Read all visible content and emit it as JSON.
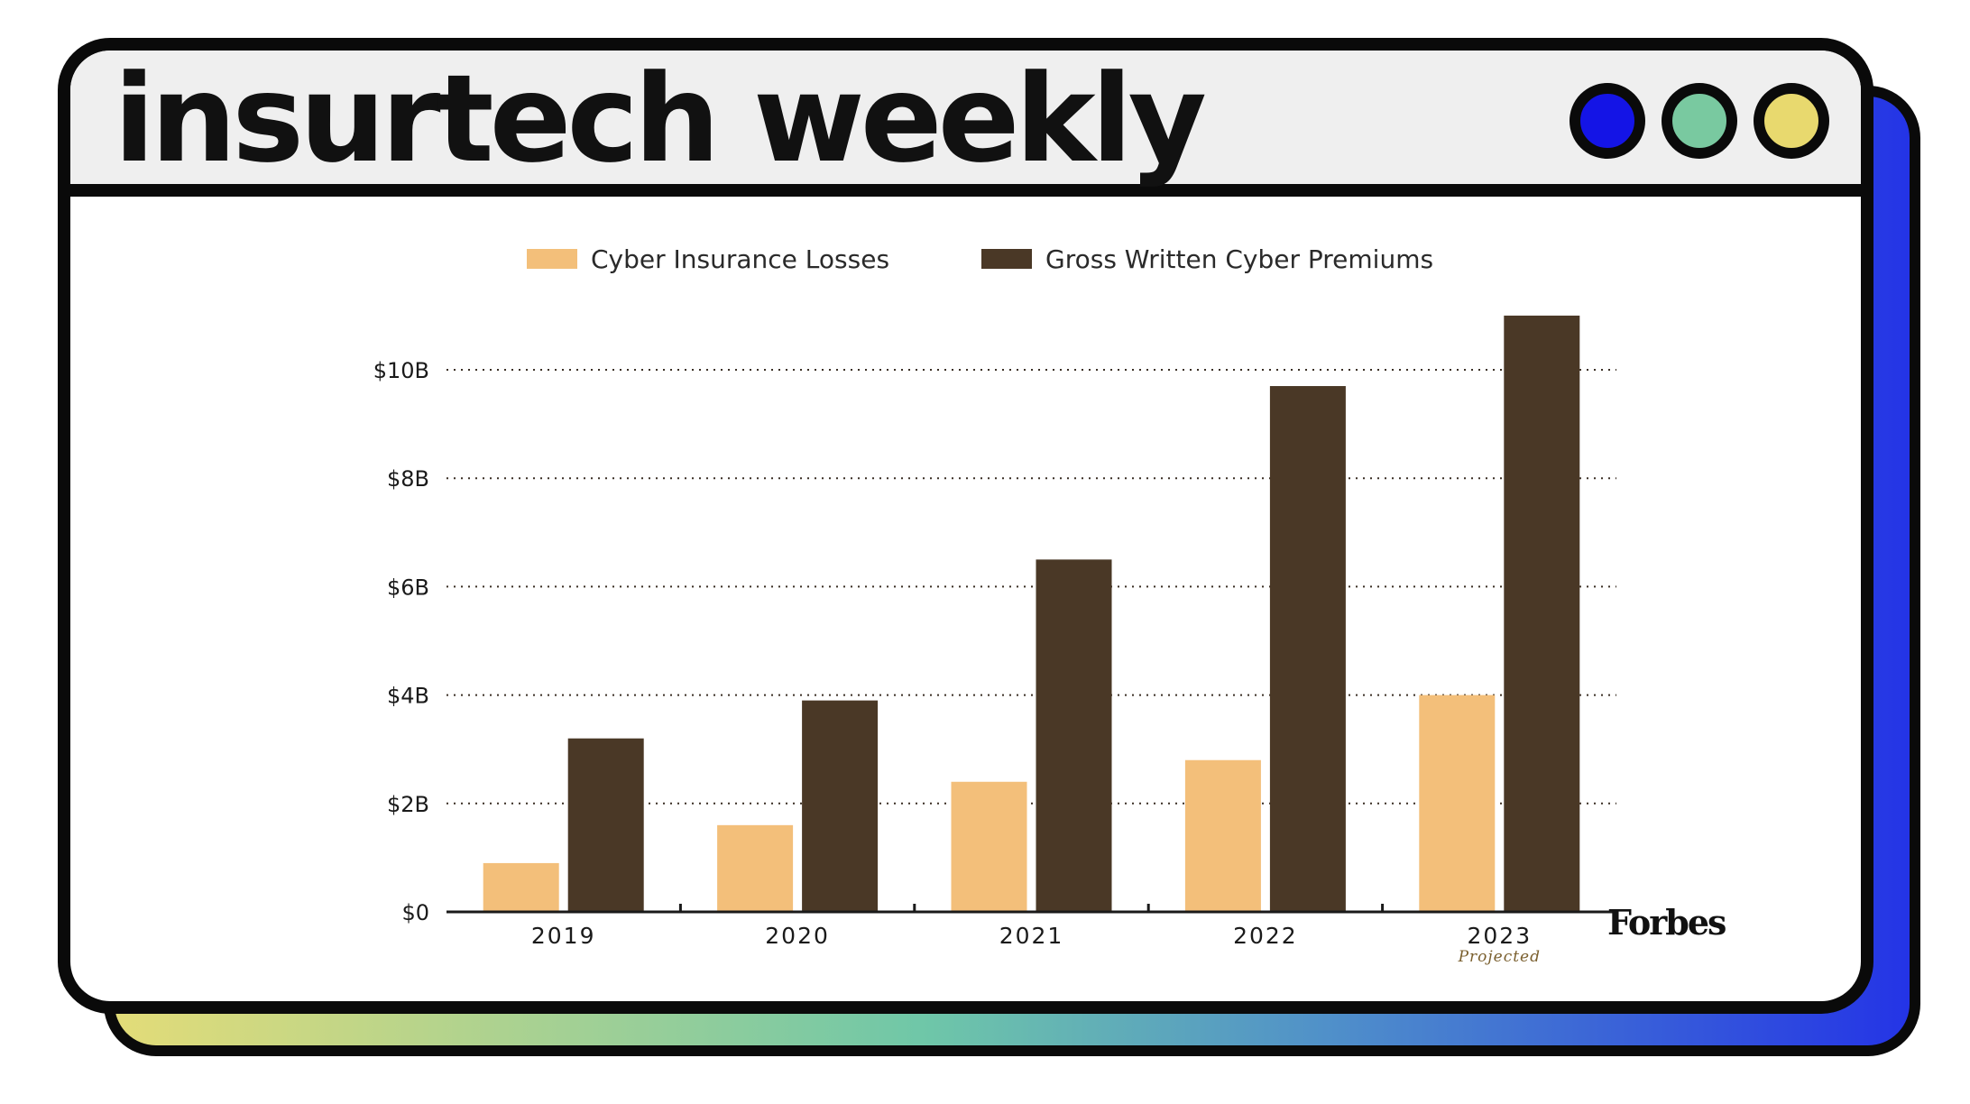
{
  "app": {
    "title": "insurtech weekly",
    "window_dots": [
      {
        "name": "blue-dot",
        "color": "#1414e6"
      },
      {
        "name": "green-dot",
        "color": "#79c9a0"
      },
      {
        "name": "yellow-dot",
        "color": "#e8d96e"
      }
    ],
    "brand": "Forbes"
  },
  "chart_data": {
    "type": "bar",
    "categories": [
      "2019",
      "2020",
      "2021",
      "2022",
      "2023"
    ],
    "category_notes": [
      "",
      "",
      "",
      "",
      "Projected"
    ],
    "series": [
      {
        "name": "Cyber Insurance Losses",
        "color": "#f3bf7a",
        "values": [
          0.9,
          1.6,
          2.4,
          2.8,
          4.0
        ]
      },
      {
        "name": "Gross Written Cyber Premiums",
        "color": "#4a3826",
        "values": [
          3.2,
          3.9,
          6.5,
          9.7,
          11.0
        ]
      }
    ],
    "y_ticks": [
      {
        "value": 0,
        "label": "$0"
      },
      {
        "value": 2,
        "label": "$2B"
      },
      {
        "value": 4,
        "label": "$4B"
      },
      {
        "value": 6,
        "label": "$6B"
      },
      {
        "value": 8,
        "label": "$8B"
      },
      {
        "value": 10,
        "label": "$10B"
      }
    ],
    "ylim": [
      0,
      11.5
    ],
    "grid": "horizontal-dotted",
    "legend_position": "top"
  }
}
